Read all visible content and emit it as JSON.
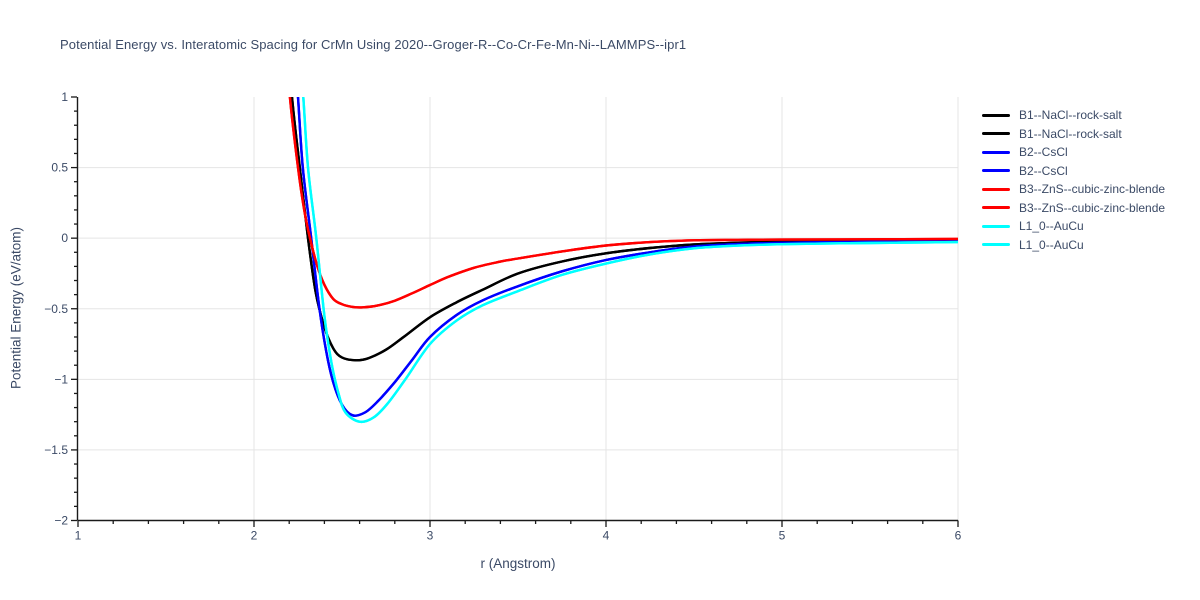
{
  "chart": {
    "title": "Potential Energy vs. Interatomic Spacing for CrMn Using 2020--Groger-R--Co-Cr-Fe-Mn-Ni--LAMMPS--ipr1",
    "xlabel": "r (Angstrom)",
    "ylabel": "Potential Energy (eV/atom)"
  },
  "colors": {
    "text": "#3b4a66",
    "axis": "#1a1a1a",
    "grid": "#e5e5e5",
    "background": "#ffffff"
  },
  "chart_data": {
    "type": "line",
    "title": "Potential Energy vs. Interatomic Spacing for CrMn Using 2020--Groger-R--Co-Cr-Fe-Mn-Ni--LAMMPS--ipr1",
    "xlabel": "r (Angstrom)",
    "ylabel": "Potential Energy (eV/atom)",
    "xlim": [
      1,
      6
    ],
    "ylim": [
      -2,
      1
    ],
    "grid": true,
    "legend_position": "right-outside",
    "x_tick_values": [
      1,
      2,
      3,
      4,
      5,
      6
    ],
    "x_tick_labels": [
      "1",
      "2",
      "3",
      "4",
      "5",
      "6"
    ],
    "x_minor_step": 0.2,
    "y_tick_values": [
      1,
      0.5,
      0,
      -0.5,
      -1,
      -1.5,
      -2
    ],
    "y_tick_labels": [
      "1",
      "0.5",
      "0",
      "−0.5",
      "−1",
      "−1.5",
      "−2"
    ],
    "y_minor_step": 0.1,
    "series": [
      {
        "label": "B1--NaCl--rock-salt",
        "color": "#000000",
        "curve": "b1_nacl"
      },
      {
        "label": "B1--NaCl--rock-salt",
        "color": "#000000",
        "curve": "b1_nacl"
      },
      {
        "label": "B2--CsCl",
        "color": "#0000ff",
        "curve": "b2_cscl"
      },
      {
        "label": "B2--CsCl",
        "color": "#0000ff",
        "curve": "b2_cscl"
      },
      {
        "label": "B3--ZnS--cubic-zinc-blende",
        "color": "#ff0000",
        "curve": "b3_zns"
      },
      {
        "label": "B3--ZnS--cubic-zinc-blende",
        "color": "#ff0000",
        "curve": "b3_zns"
      },
      {
        "label": "L1_0--AuCu",
        "color": "#00ffff",
        "curve": "l10_aucu"
      },
      {
        "label": "L1_0--AuCu",
        "color": "#00ffff",
        "curve": "l10_aucu"
      }
    ],
    "curves": {
      "b1_nacl": [
        [
          2.18,
          1.6
        ],
        [
          2.216,
          1.0
        ],
        [
          2.26,
          0.5
        ],
        [
          2.307,
          0.0
        ],
        [
          2.35,
          -0.38
        ],
        [
          2.4,
          -0.63
        ],
        [
          2.45,
          -0.78
        ],
        [
          2.5,
          -0.845
        ],
        [
          2.58,
          -0.865
        ],
        [
          2.65,
          -0.85
        ],
        [
          2.75,
          -0.79
        ],
        [
          2.85,
          -0.7
        ],
        [
          3.0,
          -0.56
        ],
        [
          3.15,
          -0.455
        ],
        [
          3.3,
          -0.365
        ],
        [
          3.5,
          -0.25
        ],
        [
          3.75,
          -0.165
        ],
        [
          4.0,
          -0.107
        ],
        [
          4.25,
          -0.07
        ],
        [
          4.5,
          -0.045
        ],
        [
          4.75,
          -0.032
        ],
        [
          5.0,
          -0.025
        ],
        [
          5.5,
          -0.02
        ],
        [
          6.0,
          -0.015
        ]
      ],
      "b2_cscl": [
        [
          2.215,
          1.6
        ],
        [
          2.25,
          1.0
        ],
        [
          2.277,
          0.5
        ],
        [
          2.325,
          0.0
        ],
        [
          2.37,
          -0.48
        ],
        [
          2.41,
          -0.8
        ],
        [
          2.45,
          -1.02
        ],
        [
          2.5,
          -1.18
        ],
        [
          2.56,
          -1.255
        ],
        [
          2.63,
          -1.235
        ],
        [
          2.7,
          -1.16
        ],
        [
          2.8,
          -1.02
        ],
        [
          2.9,
          -0.86
        ],
        [
          3.0,
          -0.7
        ],
        [
          3.15,
          -0.545
        ],
        [
          3.3,
          -0.44
        ],
        [
          3.5,
          -0.34
        ],
        [
          3.75,
          -0.235
        ],
        [
          4.0,
          -0.155
        ],
        [
          4.25,
          -0.1
        ],
        [
          4.5,
          -0.06
        ],
        [
          4.75,
          -0.042
        ],
        [
          5.0,
          -0.033
        ],
        [
          5.5,
          -0.026
        ],
        [
          6.0,
          -0.02
        ]
      ],
      "b3_zns": [
        [
          2.17,
          1.6
        ],
        [
          2.204,
          1.0
        ],
        [
          2.25,
          0.5
        ],
        [
          2.285,
          0.2
        ],
        [
          2.318,
          0.0
        ],
        [
          2.36,
          -0.2
        ],
        [
          2.4,
          -0.33
        ],
        [
          2.45,
          -0.43
        ],
        [
          2.5,
          -0.468
        ],
        [
          2.56,
          -0.487
        ],
        [
          2.62,
          -0.49
        ],
        [
          2.7,
          -0.478
        ],
        [
          2.8,
          -0.443
        ],
        [
          2.9,
          -0.39
        ],
        [
          3.0,
          -0.332
        ],
        [
          3.1,
          -0.276
        ],
        [
          3.25,
          -0.21
        ],
        [
          3.4,
          -0.166
        ],
        [
          3.5,
          -0.144
        ],
        [
          3.75,
          -0.094
        ],
        [
          4.0,
          -0.052
        ],
        [
          4.25,
          -0.028
        ],
        [
          4.5,
          -0.015
        ],
        [
          4.75,
          -0.012
        ],
        [
          5.0,
          -0.01
        ],
        [
          5.5,
          -0.008
        ],
        [
          6.0,
          -0.005
        ]
      ],
      "l10_aucu": [
        [
          2.245,
          1.6
        ],
        [
          2.28,
          1.0
        ],
        [
          2.307,
          0.5
        ],
        [
          2.354,
          0.0
        ],
        [
          2.4,
          -0.55
        ],
        [
          2.44,
          -0.88
        ],
        [
          2.48,
          -1.1
        ],
        [
          2.52,
          -1.235
        ],
        [
          2.6,
          -1.3
        ],
        [
          2.68,
          -1.27
        ],
        [
          2.76,
          -1.17
        ],
        [
          2.86,
          -1.0
        ],
        [
          3.0,
          -0.75
        ],
        [
          3.15,
          -0.585
        ],
        [
          3.3,
          -0.475
        ],
        [
          3.5,
          -0.375
        ],
        [
          3.75,
          -0.26
        ],
        [
          4.0,
          -0.18
        ],
        [
          4.25,
          -0.115
        ],
        [
          4.5,
          -0.072
        ],
        [
          4.75,
          -0.053
        ],
        [
          5.0,
          -0.043
        ],
        [
          5.5,
          -0.034
        ],
        [
          6.0,
          -0.028
        ]
      ]
    }
  }
}
